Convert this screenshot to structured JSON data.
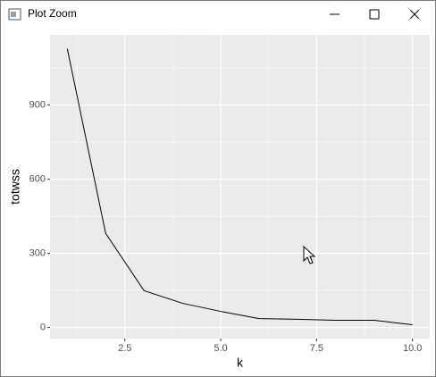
{
  "window": {
    "title": "Plot Zoom"
  },
  "chart_data": {
    "type": "line",
    "x_label": "k",
    "y_label": "totwss",
    "x": [
      1,
      2,
      3,
      4,
      5,
      6,
      7,
      8,
      9,
      10
    ],
    "series": [
      {
        "color": "#000000",
        "values": [
          1128,
          381,
          149,
          98,
          65,
          36,
          33,
          29,
          29,
          11
        ]
      }
    ],
    "xlim": [
      0.55,
      10.45
    ],
    "xticks": [
      2.5,
      {
        "value": 5,
        "label": "5.0"
      },
      7.5,
      {
        "value": 10,
        "label": "10.0"
      }
    ],
    "x_minor_ticks": [
      1.25,
      3.75,
      6.25,
      8.75
    ],
    "ylim": [
      -45,
      1184
    ],
    "yticks": [
      0,
      300,
      600,
      900
    ],
    "y_minor_ticks": [
      150,
      450,
      750,
      1050
    ],
    "grid": true
  }
}
